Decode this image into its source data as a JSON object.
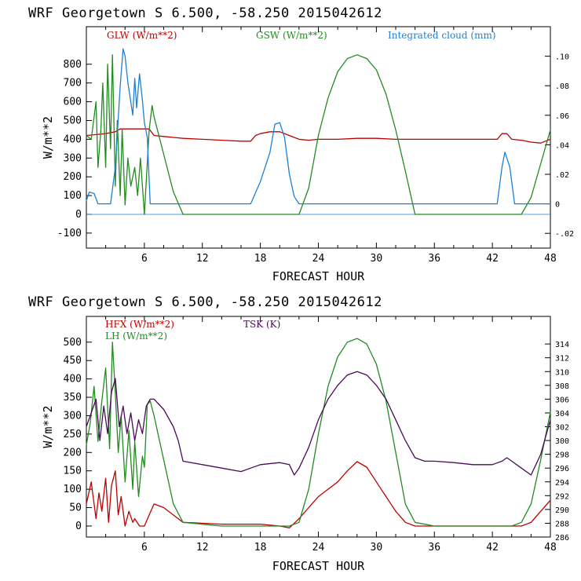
{
  "chart_data": [
    {
      "type": "line",
      "title": "WRF   Georgetown S   6.500, -58.250  2015042612",
      "xlabel": "FORECAST HOUR",
      "ylabel": "W/m**2",
      "xlim": [
        0,
        48
      ],
      "ylim": [
        -180,
        1000
      ],
      "y2lim": [
        -0.03,
        0.12
      ],
      "xticks": [
        "6",
        "12",
        "18",
        "24",
        "30",
        "36",
        "42",
        "48"
      ],
      "yticks": [
        "800",
        "700",
        "600",
        "500",
        "400",
        "300",
        "200",
        "100",
        "0",
        "-100"
      ],
      "y2ticks": [
        ".10",
        ".08",
        ".06",
        ".04",
        ".02",
        "0",
        "-.02"
      ],
      "series": [
        {
          "name": "GLW (W/m**2)",
          "color": "#c00000",
          "axis": "left",
          "x": [
            0,
            1,
            2,
            3,
            3.5,
            4,
            5,
            6,
            6.5,
            7,
            8,
            9,
            10,
            12,
            14,
            16,
            17,
            17.5,
            18,
            19,
            20,
            21,
            22,
            23,
            24,
            26,
            28,
            30,
            32,
            34,
            36,
            38,
            40,
            42,
            42.5,
            43,
            43.5,
            44,
            45,
            46,
            47,
            48
          ],
          "y": [
            420,
            425,
            430,
            440,
            455,
            455,
            455,
            455,
            455,
            420,
            415,
            410,
            405,
            400,
            395,
            390,
            390,
            420,
            430,
            440,
            440,
            420,
            400,
            395,
            400,
            400,
            405,
            405,
            400,
            400,
            400,
            400,
            400,
            400,
            400,
            430,
            430,
            400,
            395,
            385,
            380,
            400
          ]
        },
        {
          "name": "GSW (W/m**2)",
          "color": "#228b22",
          "axis": "left",
          "x": [
            0,
            0.5,
            1,
            1.2,
            1.5,
            1.7,
            2,
            2.2,
            2.5,
            2.7,
            3,
            3.2,
            3.5,
            3.7,
            4,
            4.3,
            4.6,
            5,
            5.3,
            5.6,
            6,
            6.5,
            6.8,
            7,
            8,
            9,
            10,
            20,
            21,
            22,
            23,
            24,
            25,
            26,
            27,
            28,
            29,
            30,
            31,
            32,
            33,
            34,
            35,
            44,
            45,
            46,
            47,
            48
          ],
          "y": [
            420,
            400,
            600,
            250,
            450,
            700,
            250,
            800,
            350,
            850,
            150,
            500,
            100,
            450,
            50,
            300,
            150,
            250,
            100,
            300,
            0,
            450,
            580,
            520,
            320,
            120,
            0,
            0,
            0,
            0,
            140,
            420,
            620,
            760,
            830,
            850,
            830,
            770,
            640,
            450,
            230,
            0,
            0,
            0,
            0,
            90,
            270,
            450
          ]
        },
        {
          "name": "Integrated cloud (mm)",
          "color": "#1e7fd6",
          "axis": "right",
          "x": [
            0,
            0.3,
            0.8,
            1.2,
            1.5,
            2,
            2.5,
            3,
            3.5,
            3.8,
            4,
            4.3,
            4.8,
            5,
            5.2,
            5.5,
            5.8,
            6,
            6.3,
            6.6,
            7,
            9,
            12,
            16,
            17,
            18,
            19,
            19.5,
            20,
            20.5,
            21,
            21.5,
            22,
            26,
            30,
            35,
            40,
            42,
            42.5,
            43,
            43.3,
            43.8,
            44.3,
            48
          ],
          "y": [
            0.002,
            0.008,
            0.007,
            0,
            0,
            0,
            0,
            0.025,
            0.08,
            0.105,
            0.1,
            0.082,
            0.06,
            0.085,
            0.065,
            0.088,
            0.07,
            0.055,
            0.045,
            0,
            0,
            0,
            0,
            0,
            0,
            0.015,
            0.035,
            0.054,
            0.055,
            0.045,
            0.02,
            0.005,
            0,
            0,
            0,
            0,
            0,
            0,
            0,
            0.025,
            0.035,
            0.025,
            0,
            0
          ]
        }
      ]
    },
    {
      "type": "line",
      "title": "WRF   Georgetown S   6.500, -58.250  2015042612",
      "xlabel": "FORECAST HOUR",
      "ylabel": "W/m**2",
      "xlim": [
        0,
        48
      ],
      "ylim": [
        -30,
        570
      ],
      "y2lim": [
        286,
        318
      ],
      "xticks": [
        "6",
        "12",
        "18",
        "24",
        "30",
        "36",
        "42",
        "48"
      ],
      "yticks": [
        "500",
        "450",
        "400",
        "350",
        "300",
        "250",
        "200",
        "150",
        "100",
        "50",
        "0"
      ],
      "y2ticks": [
        "314",
        "312",
        "310",
        "308",
        "306",
        "304",
        "302",
        "300",
        "298",
        "296",
        "294",
        "292",
        "290",
        "288",
        "286"
      ],
      "series": [
        {
          "name": "HFX (W/m**2)",
          "color": "#c00000",
          "axis": "left",
          "x": [
            0,
            0.5,
            1,
            1.3,
            1.6,
            2,
            2.3,
            2.6,
            3,
            3.3,
            3.6,
            4,
            4.4,
            4.8,
            5,
            5.5,
            6,
            6.5,
            7,
            8,
            9,
            10,
            14,
            18,
            20,
            21,
            22,
            23,
            24,
            25,
            26,
            27,
            28,
            29,
            30,
            31,
            32,
            33,
            34,
            36,
            40,
            44,
            45,
            46,
            47,
            48
          ],
          "y": [
            60,
            120,
            20,
            90,
            40,
            130,
            10,
            110,
            150,
            30,
            80,
            0,
            40,
            10,
            20,
            0,
            0,
            30,
            60,
            50,
            30,
            10,
            5,
            5,
            0,
            -5,
            20,
            50,
            80,
            100,
            120,
            150,
            175,
            160,
            120,
            80,
            40,
            10,
            0,
            0,
            0,
            0,
            0,
            10,
            40,
            70
          ]
        },
        {
          "name": "LH  (W/m**2)",
          "color": "#228b22",
          "axis": "left",
          "x": [
            0,
            0.4,
            0.8,
            1.2,
            1.6,
            2,
            2.4,
            2.7,
            3,
            3.3,
            3.6,
            4,
            4.4,
            4.8,
            5,
            5.4,
            5.8,
            6,
            6.3,
            6.6,
            7,
            8,
            9,
            10,
            14,
            18,
            21,
            22,
            23,
            24,
            25,
            26,
            27,
            28,
            29,
            30,
            31,
            32,
            33,
            34,
            36,
            40,
            44,
            45,
            46,
            47,
            48
          ],
          "y": [
            220,
            280,
            380,
            230,
            340,
            430,
            210,
            500,
            360,
            200,
            300,
            120,
            260,
            100,
            230,
            80,
            190,
            160,
            330,
            340,
            300,
            180,
            60,
            10,
            0,
            0,
            0,
            10,
            100,
            250,
            380,
            460,
            500,
            510,
            495,
            440,
            340,
            200,
            60,
            10,
            0,
            0,
            0,
            10,
            60,
            180,
            310
          ]
        },
        {
          "name": "TSK (K)",
          "color": "#4b0a5a",
          "axis": "right",
          "x": [
            0,
            0.5,
            1,
            1.4,
            1.8,
            2.2,
            2.6,
            3,
            3.4,
            3.8,
            4.2,
            4.6,
            5,
            5.4,
            5.8,
            6.2,
            6.6,
            7,
            8,
            9,
            9.5,
            10,
            12,
            14,
            16,
            17,
            18,
            20,
            21,
            21.5,
            22,
            23,
            24,
            25,
            26,
            27,
            28,
            29,
            30,
            31,
            32,
            33,
            34,
            35,
            36,
            38,
            40,
            42,
            43,
            43.5,
            44,
            45,
            46,
            47,
            48
          ],
          "y": [
            302,
            304,
            306,
            300,
            305,
            301,
            307,
            309,
            302,
            305,
            301,
            304,
            300,
            303,
            301,
            305,
            306,
            306,
            304.5,
            302,
            300,
            297,
            296.5,
            296,
            295.5,
            296,
            296.5,
            296.8,
            296.5,
            295,
            296,
            299,
            303,
            306,
            308,
            309.5,
            310,
            309.5,
            308,
            306,
            303,
            300,
            297.5,
            297,
            297,
            296.8,
            296.5,
            296.5,
            297,
            297.5,
            297,
            296,
            295,
            298,
            303
          ]
        }
      ]
    }
  ]
}
